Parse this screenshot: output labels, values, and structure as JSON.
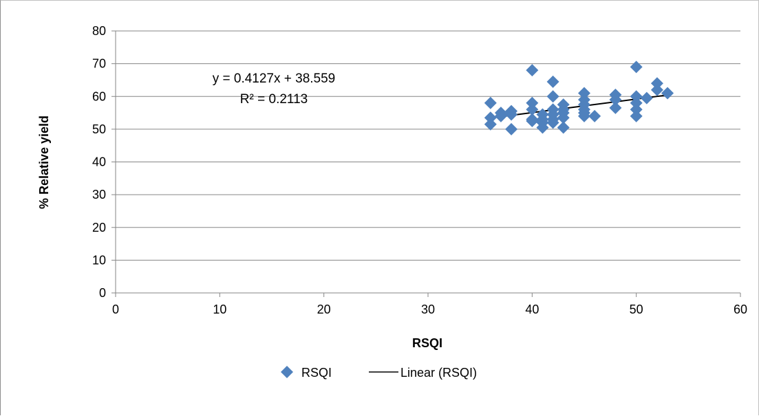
{
  "chart_data": {
    "type": "scatter",
    "xlabel": "RSQI",
    "ylabel": "% Relative yield",
    "xlim": [
      0,
      60
    ],
    "ylim": [
      0,
      80
    ],
    "xticks": [
      0,
      10,
      20,
      30,
      40,
      50,
      60
    ],
    "yticks": [
      0,
      10,
      20,
      30,
      40,
      50,
      60,
      70,
      80
    ],
    "grid": "horizontal",
    "legend_position": "bottom",
    "series": [
      {
        "name": "RSQI",
        "marker": "diamond",
        "color": "#4f81bd",
        "x": [
          36,
          36,
          36,
          37,
          37,
          38,
          38,
          38,
          40,
          40,
          40,
          40,
          40,
          41,
          41,
          41,
          41,
          42,
          42,
          42,
          42,
          42,
          42,
          43,
          43,
          43,
          43,
          43,
          45,
          45,
          45,
          45,
          45,
          45,
          46,
          48,
          48,
          48,
          50,
          50,
          50,
          50,
          50,
          51,
          52,
          52,
          53
        ],
        "y": [
          58,
          53.5,
          51.5,
          55,
          54,
          55.5,
          54.5,
          50,
          68,
          58,
          56,
          53,
          52.5,
          54.5,
          53,
          52,
          50.5,
          64.5,
          60,
          56,
          54.5,
          53,
          52,
          57.5,
          56,
          55,
          53.5,
          50.5,
          61,
          59,
          57.5,
          56,
          55,
          54,
          54,
          60.5,
          59,
          56.5,
          69,
          60,
          58,
          56,
          54,
          59.5,
          64,
          62,
          61
        ]
      }
    ],
    "trendline": {
      "name": "Linear (RSQI)",
      "color": "#000000",
      "slope": 0.4127,
      "intercept": 38.559,
      "x_range": [
        36,
        53
      ],
      "equation": "y = 0.4127x + 38.559",
      "r_squared": "R² = 0.2113"
    }
  }
}
